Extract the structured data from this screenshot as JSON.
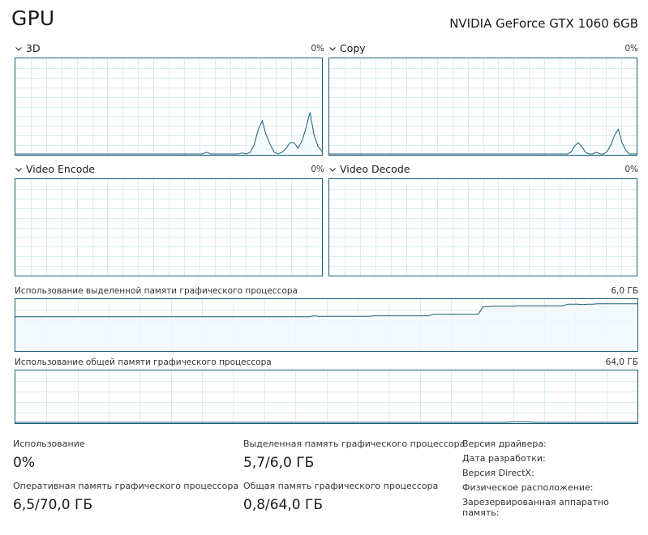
{
  "header": {
    "title": "GPU",
    "gpu_name": "NVIDIA GeForce GTX 1060 6GB"
  },
  "engines": [
    {
      "label": "3D",
      "percent": "0%",
      "points": [
        0,
        0,
        0,
        0,
        0,
        0,
        0,
        0,
        0,
        0,
        0,
        0,
        0,
        0,
        0,
        0,
        0,
        0,
        0,
        0,
        0,
        0,
        0,
        0,
        0,
        0,
        0,
        0,
        0,
        0,
        0,
        0,
        0,
        0,
        0,
        0,
        0,
        0,
        0,
        0,
        0,
        0,
        0,
        0,
        0,
        0,
        0,
        0,
        2,
        0,
        0,
        0,
        0,
        0,
        0,
        0,
        0,
        1,
        0,
        2,
        10,
        26,
        35,
        20,
        10,
        2,
        0,
        2,
        6,
        12,
        12,
        6,
        14,
        28,
        44,
        20,
        8,
        3
      ]
    },
    {
      "label": "Copy",
      "percent": "0%",
      "points": [
        0,
        0,
        0,
        0,
        0,
        0,
        0,
        0,
        0,
        0,
        0,
        0,
        0,
        0,
        0,
        0,
        0,
        0,
        0,
        0,
        0,
        0,
        0,
        0,
        0,
        0,
        0,
        0,
        0,
        0,
        0,
        0,
        0,
        0,
        0,
        0,
        0,
        0,
        0,
        0,
        0,
        0,
        0,
        0,
        0,
        0,
        0,
        0,
        0,
        0,
        0,
        0,
        0,
        0,
        0,
        0,
        0,
        0,
        0,
        0,
        0,
        0,
        0,
        0,
        0,
        0,
        2,
        8,
        12,
        8,
        2,
        0,
        0,
        2,
        0,
        0,
        3,
        10,
        20,
        26,
        12,
        4,
        0,
        0,
        0
      ]
    },
    {
      "label": "Video Encode",
      "percent": "0%",
      "points": []
    },
    {
      "label": "Video Decode",
      "percent": "0%",
      "points": []
    }
  ],
  "memory_graphs": [
    {
      "label": "Использование выделенной памяти графического процессора",
      "max": "6,0 ГБ",
      "max_gb": 6,
      "points_gb": [
        4.0,
        4.0,
        4.0,
        4.0,
        4.0,
        4.0,
        4.0,
        4.0,
        4.0,
        4.0,
        4.0,
        4.0,
        4.0,
        4.0,
        4.0,
        4.0,
        4.0,
        4.0,
        4.0,
        4.0,
        4.0,
        4.0,
        4.0,
        4.0,
        4.0,
        4.0,
        4.0,
        4.0,
        4.0,
        4.0,
        4.0,
        4.0,
        4.0,
        4.0,
        4.0,
        4.0,
        4.0,
        4.0,
        4.0,
        4.0,
        4.0,
        4.0,
        4.0,
        4.0,
        4.0,
        4.0,
        4.0,
        4.0,
        4.0,
        4.0,
        4.0,
        4.0,
        4.0,
        4.0,
        4.0,
        4.0,
        4.0,
        4.0,
        4.0,
        4.0,
        4.1,
        4.05,
        4.05,
        4.05,
        4.05,
        4.05,
        4.05,
        4.05,
        4.05,
        4.05,
        4.05,
        4.05,
        4.1,
        4.1,
        4.1,
        4.1,
        4.1,
        4.1,
        4.1,
        4.1,
        4.1,
        4.1,
        4.1,
        4.1,
        4.3,
        4.3,
        4.3,
        4.3,
        4.3,
        4.3,
        4.3,
        4.3,
        4.3,
        4.3,
        5.2,
        5.2,
        5.25,
        5.25,
        5.25,
        5.25,
        5.25,
        5.3,
        5.3,
        5.3,
        5.3,
        5.3,
        5.3,
        5.3,
        5.3,
        5.3,
        5.3,
        5.5,
        5.5,
        5.5,
        5.45,
        5.5,
        5.5,
        5.55,
        5.55,
        5.55,
        5.55,
        5.55,
        5.55,
        5.55,
        5.55,
        5.55
      ]
    },
    {
      "label": "Использование общей памяти графического процессора",
      "max": "64,0 ГБ",
      "max_gb": 64,
      "points_gb": [
        0.05,
        0.05,
        0.05,
        0.05,
        0.05,
        0.05,
        0.05,
        0.05,
        0.05,
        0.05,
        0.05,
        0.05,
        0.05,
        0.05,
        0.05,
        0.05,
        0.05,
        0.05,
        0.05,
        0.05,
        0.05,
        0.05,
        0.05,
        0.05,
        0.05,
        0.05,
        0.05,
        0.05,
        0.05,
        0.05,
        0.05,
        0.05,
        0.05,
        0.05,
        0.05,
        0.05,
        0.05,
        0.05,
        0.05,
        0.05,
        0.05,
        0.05,
        0.05,
        0.05,
        0.05,
        0.05,
        0.05,
        0.05,
        0.05,
        0.05,
        0.05,
        0.05,
        0.05,
        0.05,
        0.05,
        0.05,
        0.05,
        0.05,
        0.05,
        0.05,
        0.05,
        0.05,
        0.05,
        0.05,
        0.05,
        0.05,
        0.05,
        0.05,
        0.05,
        0.05,
        0.05,
        0.05,
        0.05,
        0.05,
        0.05,
        0.05,
        0.05,
        0.05,
        0.05,
        0.05,
        0.05,
        0.05,
        0.05,
        0.05,
        0.05,
        0.05,
        0.05,
        0.05,
        0.05,
        0.05,
        0.05,
        0.05,
        0.05,
        0.3,
        0.7,
        0.8,
        0.7,
        0.3,
        0.05,
        0.05,
        0.05,
        0.05,
        0.05,
        0.05,
        0.05,
        0.05,
        0.05,
        0.05,
        0.05,
        0.05,
        0.05,
        0.05,
        0.05,
        0.05,
        0.05,
        0.05,
        0.05,
        0.05
      ]
    }
  ],
  "stats": {
    "usage_label": "Использование",
    "usage_value": "0%",
    "gpu_mem_label": "Оперативная память графического процессора",
    "gpu_mem_value": "6,5/70,0 ГБ",
    "dedicated_label": "Выделенная память графического процессора",
    "dedicated_value": "5,7/6,0 ГБ",
    "shared_label": "Общая память графического процессора",
    "shared_value": "0,8/64,0 ГБ"
  },
  "info": {
    "driver_version": "Версия драйвера:",
    "driver_date": "Дата разработки:",
    "directx": "Версия DirectX:",
    "location": "Физическое расположение:",
    "reserved": "Зарезервированная аппаратно память:"
  },
  "colors": {
    "border": "#1b5e77",
    "grid": "#d9ecf2",
    "fill": "#f1f8fb",
    "line": "#1b5e77"
  }
}
